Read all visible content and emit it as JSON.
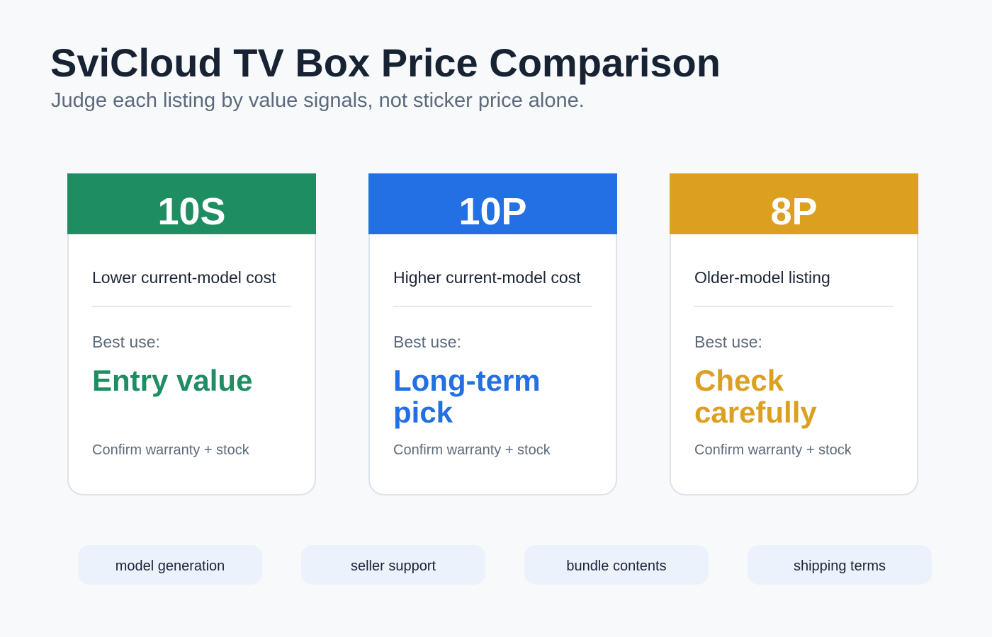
{
  "header": {
    "title": "SviCloud TV Box Price Comparison",
    "subtitle": "Judge each listing by value signals, not sticker price alone."
  },
  "cards": [
    {
      "model": "10S",
      "cost": "Lower current-model cost",
      "best_use_label": "Best use:",
      "best_use": "Entry value",
      "note": "Confirm warranty + stock",
      "color": "#1e8e62"
    },
    {
      "model": "10P",
      "cost": "Higher current-model cost",
      "best_use_label": "Best use:",
      "best_use": "Long-term pick",
      "note": "Confirm warranty + stock",
      "color": "#2270e3"
    },
    {
      "model": "8P",
      "cost": "Older-model listing",
      "best_use_label": "Best use:",
      "best_use": "Check carefully",
      "note": "Confirm warranty + stock",
      "color": "#dca021"
    }
  ],
  "chips": [
    "model generation",
    "seller support",
    "bundle contents",
    "shipping terms"
  ]
}
